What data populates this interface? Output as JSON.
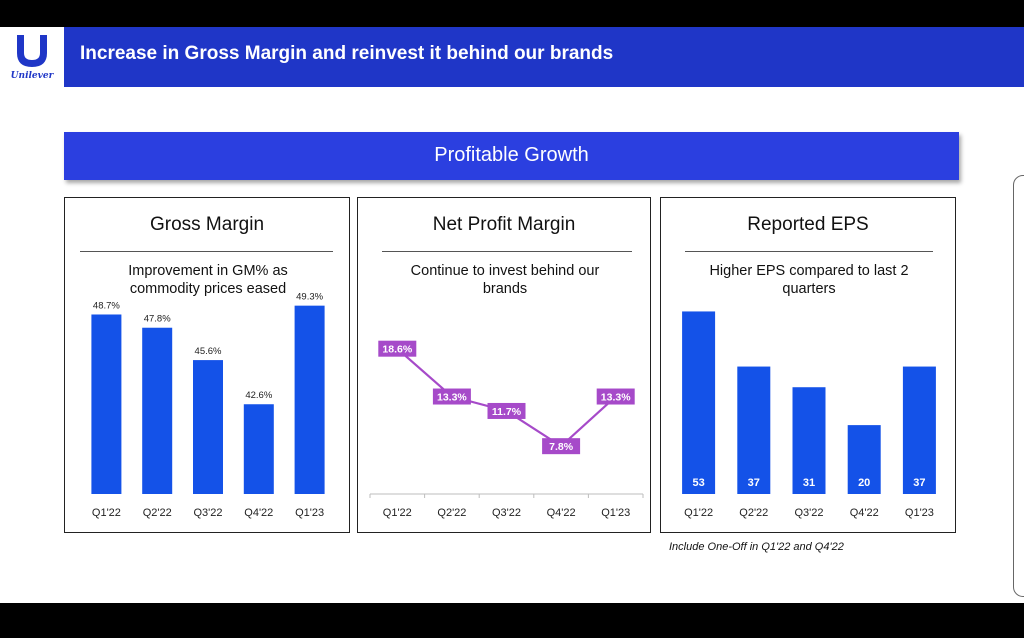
{
  "brand": {
    "name": "Unilever",
    "color": "#1f36c7",
    "icon": "unilever-u-logo-icon"
  },
  "header": {
    "title": "Increase in Gross Margin and reinvest it behind our brands"
  },
  "banner": {
    "label": "Profitable Growth"
  },
  "footnote": "Include One-Off in Q1'22 and Q4'22",
  "panels": [
    {
      "title": "Gross Margin",
      "subtitle": "Improvement in GM% as commodity prices eased"
    },
    {
      "title": "Net Profit Margin",
      "subtitle": "Continue to invest behind our brands"
    },
    {
      "title": "Reported EPS",
      "subtitle": "Higher EPS compared to last 2 quarters"
    }
  ],
  "colors": {
    "bar": "#1452e8",
    "line": "#a64ac9",
    "axis": "#bdbdbd"
  },
  "chart_data": [
    {
      "type": "bar",
      "title": "Gross Margin",
      "categories": [
        "Q1'22",
        "Q2'22",
        "Q3'22",
        "Q4'22",
        "Q1'23"
      ],
      "values": [
        48.7,
        47.8,
        45.6,
        42.6,
        49.3
      ],
      "labels": [
        "48.7%",
        "47.8%",
        "45.6%",
        "42.6%",
        "49.3%"
      ],
      "label_position": "above",
      "ylim": [
        36.5,
        50.5
      ],
      "grid": false
    },
    {
      "type": "line",
      "title": "Net Profit Margin",
      "categories": [
        "Q1'22",
        "Q2'22",
        "Q3'22",
        "Q4'22",
        "Q1'23"
      ],
      "values": [
        18.6,
        13.3,
        11.7,
        7.8,
        13.3
      ],
      "labels": [
        "18.6%",
        "13.3%",
        "11.7%",
        "7.8%",
        "13.3%"
      ],
      "ylim": [
        2.5,
        22
      ],
      "grid": false
    },
    {
      "type": "bar",
      "title": "Reported EPS",
      "categories": [
        "Q1'22",
        "Q2'22",
        "Q3'22",
        "Q4'22",
        "Q1'23"
      ],
      "values": [
        53,
        37,
        31,
        20,
        37
      ],
      "labels": [
        "53",
        "37",
        "31",
        "20",
        "37"
      ],
      "label_position": "inside-bottom",
      "ylim": [
        0,
        54
      ],
      "grid": false
    }
  ]
}
